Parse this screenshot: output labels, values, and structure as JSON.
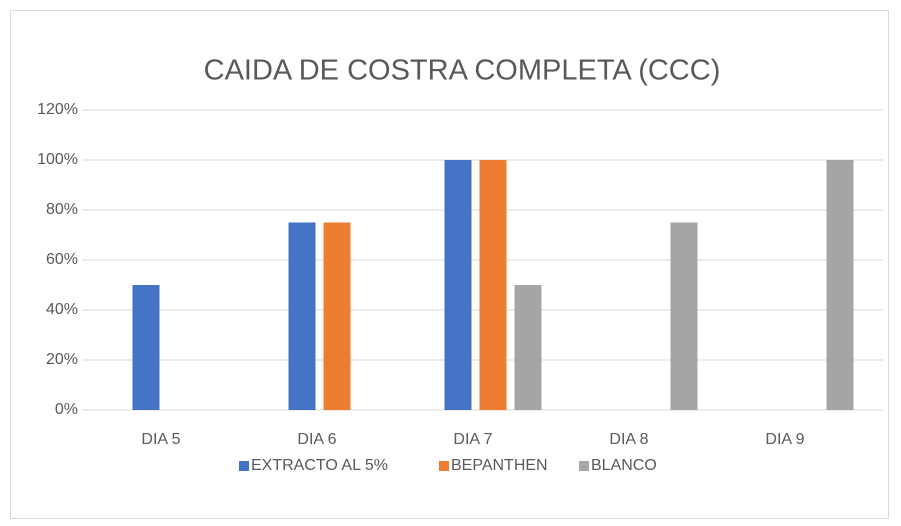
{
  "chart_data": {
    "type": "bar",
    "title": "CAIDA DE COSTRA COMPLETA (CCC)",
    "categories": [
      "DIA 5",
      "DIA 6",
      "DIA 7",
      "DIA 8",
      "DIA 9"
    ],
    "series": [
      {
        "name": "EXTRACTO AL 5%",
        "color": "#4472c4",
        "values": [
          50,
          75,
          100,
          0,
          0
        ]
      },
      {
        "name": "BEPANTHEN",
        "color": "#ed7d31",
        "values": [
          0,
          75,
          100,
          0,
          0
        ]
      },
      {
        "name": "BLANCO",
        "color": "#a5a5a5",
        "values": [
          0,
          0,
          50,
          75,
          100
        ]
      }
    ],
    "ylim": [
      0,
      120
    ],
    "yticks": [
      {
        "value": 0,
        "label": "0%"
      },
      {
        "value": 20,
        "label": "20%"
      },
      {
        "value": 40,
        "label": "40%"
      },
      {
        "value": 60,
        "label": "60%"
      },
      {
        "value": 80,
        "label": "80%"
      },
      {
        "value": 100,
        "label": "100%"
      },
      {
        "value": 120,
        "label": "120%"
      }
    ],
    "grid": true,
    "legend": "bottom"
  }
}
